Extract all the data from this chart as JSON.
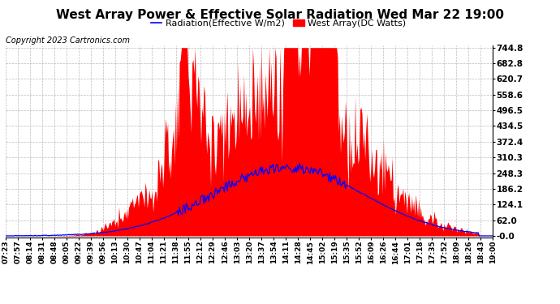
{
  "title": "West Array Power & Effective Solar Radiation Wed Mar 22 19:00",
  "copyright": "Copyright 2023 Cartronics.com",
  "legend_radiation": "Radiation(Effective W/m2)",
  "legend_west": "West Array(DC Watts)",
  "ymax": 744.8,
  "ymin": 0.0,
  "yticks": [
    0.0,
    62.0,
    124.1,
    186.2,
    248.3,
    310.3,
    372.4,
    434.5,
    496.5,
    558.6,
    620.7,
    682.8,
    744.8
  ],
  "ytick_labels": [
    "-0.0",
    "62.0",
    "124.1",
    "186.2",
    "248.3",
    "310.3",
    "372.4",
    "434.5",
    "496.5",
    "558.6",
    "620.7",
    "682.8",
    "744.8"
  ],
  "xtick_labels": [
    "07:23",
    "07:57",
    "08:14",
    "08:31",
    "08:48",
    "09:05",
    "09:22",
    "09:39",
    "09:56",
    "10:13",
    "10:30",
    "10:47",
    "11:04",
    "11:21",
    "11:38",
    "11:55",
    "12:12",
    "12:29",
    "12:46",
    "13:03",
    "13:20",
    "13:37",
    "13:54",
    "14:11",
    "14:28",
    "14:45",
    "15:02",
    "15:19",
    "15:35",
    "15:52",
    "16:09",
    "16:26",
    "16:44",
    "17:01",
    "17:18",
    "17:35",
    "17:52",
    "18:09",
    "18:26",
    "18:43",
    "19:00"
  ],
  "color_radiation": "#0000ff",
  "color_west_fill": "#ff0000",
  "color_west_edge": "#ff0000",
  "color_title": "#000000",
  "color_copyright": "#000000",
  "color_legend_radiation": "#0000ff",
  "color_legend_west": "#ff0000",
  "background_color": "#ffffff",
  "grid_color": "#aaaaaa",
  "grid_style": "--",
  "title_fontsize": 11,
  "legend_fontsize": 8,
  "copyright_fontsize": 7,
  "tick_fontsize": 6.5,
  "ytick_fontsize": 7.5
}
